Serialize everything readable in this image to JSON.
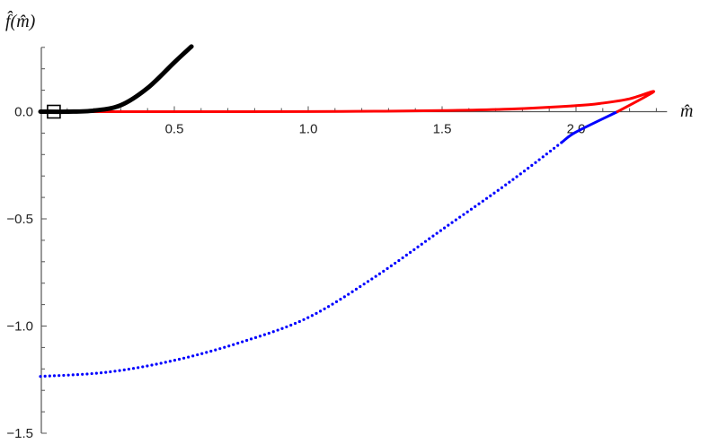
{
  "chart_data": {
    "type": "line",
    "title": "",
    "xlabel": "m̂",
    "ylabel": "f̂(m̂)",
    "xlim": [
      0,
      2.34
    ],
    "ylim": [
      -1.5,
      0.3
    ],
    "grid": false,
    "x_ticks": [
      {
        "value": 0.5,
        "label": "0.5"
      },
      {
        "value": 1.0,
        "label": "1.0"
      },
      {
        "value": 1.5,
        "label": "1.5"
      },
      {
        "value": 2.0,
        "label": "2.0"
      }
    ],
    "y_ticks": [
      {
        "value": 0.0,
        "label": "0.0"
      },
      {
        "value": -0.5,
        "label": "-0.5"
      },
      {
        "value": -1.0,
        "label": "−1.0"
      },
      {
        "value": -1.5,
        "label": "−1.5"
      }
    ],
    "series": [
      {
        "color": "#0000ff",
        "style": "dotted",
        "x": [
          0,
          0.25,
          0.5,
          0.75,
          1.0,
          1.25,
          1.5,
          1.75,
          1.95
        ],
        "y": [
          -1.235,
          -1.215,
          -1.16,
          -1.075,
          -0.96,
          -0.77,
          -0.55,
          -0.33,
          -0.14
        ]
      },
      {
        "color": "#0000ff",
        "style": "solid",
        "x": [
          1.95,
          2.0,
          2.155
        ],
        "y": [
          -0.14,
          -0.095,
          0.0
        ]
      },
      {
        "color": "#ff0000",
        "style": "solid",
        "x": [
          0,
          0.5,
          1.0,
          1.25,
          1.5,
          1.75,
          2.0,
          2.1,
          2.2,
          2.29,
          2.155
        ],
        "y": [
          0,
          0,
          0.0005,
          0.002,
          0.005,
          0.012,
          0.028,
          0.04,
          0.06,
          0.093,
          0.0
        ]
      },
      {
        "color": "#000000",
        "style": "thick",
        "x": [
          0,
          0.1,
          0.2,
          0.3,
          0.4,
          0.5,
          0.564
        ],
        "y": [
          0,
          0.0,
          0.005,
          0.03,
          0.11,
          0.23,
          0.304
        ]
      }
    ],
    "markers": [
      {
        "shape": "open-square",
        "color": "#000000",
        "x": 0.05,
        "y": 0.0
      }
    ]
  }
}
